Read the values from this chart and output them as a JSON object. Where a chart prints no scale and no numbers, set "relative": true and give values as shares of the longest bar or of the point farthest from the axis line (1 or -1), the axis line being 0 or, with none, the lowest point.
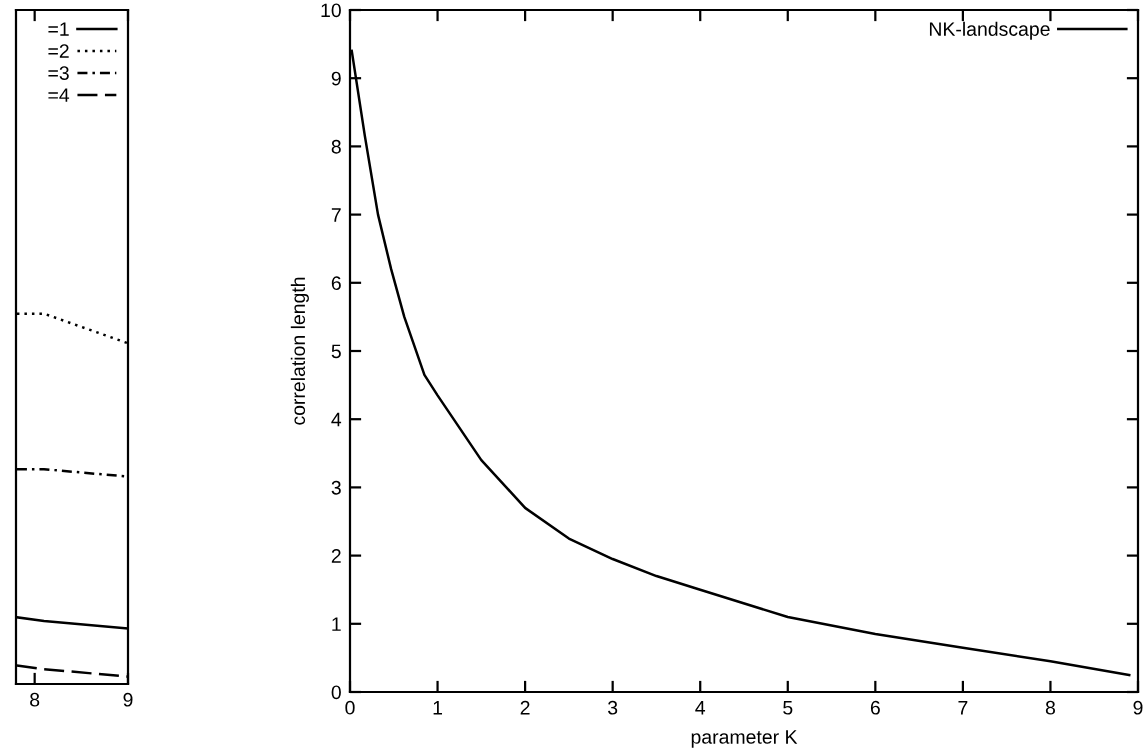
{
  "chart_data": [
    {
      "type": "line",
      "relative": true,
      "x": [
        7.81,
        8.1,
        9.0
      ],
      "xlim": [
        7.8,
        9
      ],
      "xticks": [
        8,
        9
      ],
      "tick_labels": "x",
      "legend": "top right",
      "grid": false,
      "series": [
        {
          "name": "=1",
          "color": "#000000",
          "line_style": "solid",
          "values": [
            0.18,
            0.17,
            0.15
          ]
        },
        {
          "name": "=2",
          "color": "#000000",
          "line_style": "dotted",
          "values": [
            1.0,
            1.0,
            0.92
          ]
        },
        {
          "name": "=3",
          "color": "#000000",
          "line_style": "dashdot",
          "values": [
            0.58,
            0.58,
            0.56
          ]
        },
        {
          "name": "=4",
          "color": "#000000",
          "line_style": "dashed",
          "values": [
            0.05,
            0.04,
            0.02
          ]
        }
      ]
    },
    {
      "type": "line",
      "xlabel": "parameter K",
      "ylabel": "correlation length",
      "xlim": [
        0,
        9
      ],
      "ylim": [
        0,
        10
      ],
      "xticks": [
        0,
        1,
        2,
        3,
        4,
        5,
        6,
        7,
        8,
        9
      ],
      "yticks": [
        0,
        1,
        2,
        3,
        4,
        5,
        6,
        7,
        8,
        9,
        10
      ],
      "legend": "top right",
      "grid": false,
      "x": [
        0.02,
        0.17,
        0.32,
        0.47,
        0.62,
        0.85,
        1.0,
        1.5,
        2.0,
        2.5,
        3.0,
        3.5,
        4.0,
        5.0,
        6.0,
        7.0,
        8.0,
        8.9
      ],
      "series": [
        {
          "name": "NK-landscape",
          "color": "#000000",
          "line_style": "solid",
          "values": [
            9.4,
            8.15,
            7.0,
            6.2,
            5.5,
            4.65,
            4.35,
            3.4,
            2.7,
            2.25,
            1.95,
            1.7,
            1.5,
            1.1,
            0.85,
            0.65,
            0.45,
            0.25
          ]
        }
      ]
    }
  ]
}
